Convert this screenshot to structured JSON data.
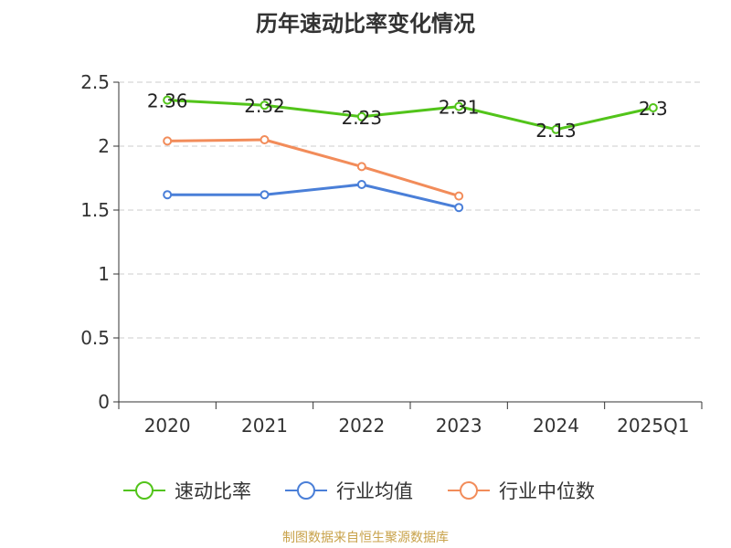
{
  "chart_data": {
    "type": "line",
    "title": "历年速动比率变化情况",
    "categories": [
      "2020",
      "2021",
      "2022",
      "2023",
      "2024",
      "2025Q1"
    ],
    "yticks": [
      "0",
      "0.5",
      "1",
      "1.5",
      "2",
      "2.5"
    ],
    "ylim": [
      0,
      2.5
    ],
    "grid": true,
    "legend_position": "bottom",
    "series": [
      {
        "name": "速动比率",
        "color": "#52c41a",
        "values": [
          2.36,
          2.32,
          2.23,
          2.31,
          2.13,
          2.3
        ],
        "labels": [
          "2.36",
          "2.32",
          "2.23",
          "2.31",
          "2.13",
          "2.3"
        ]
      },
      {
        "name": "行业均值",
        "color": "#4a7fd8",
        "values": [
          1.62,
          1.62,
          1.7,
          1.52,
          null,
          null
        ]
      },
      {
        "name": "行业中位数",
        "color": "#f28c5a",
        "values": [
          2.04,
          2.05,
          1.84,
          1.61,
          null,
          null
        ]
      }
    ]
  },
  "footer": "制图数据来自恒生聚源数据库"
}
